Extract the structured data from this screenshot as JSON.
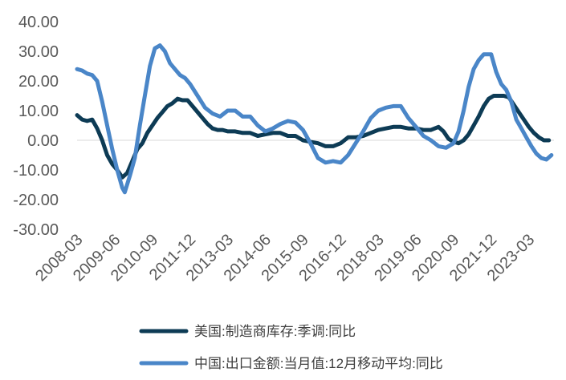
{
  "chart_data": {
    "type": "line",
    "title": "",
    "xlabel": "",
    "ylabel": "",
    "ylim": [
      -30,
      40
    ],
    "yticks": [
      "40.00",
      "30.00",
      "20.00",
      "10.00",
      "0.00",
      "-10.00",
      "-20.00",
      "-30.00"
    ],
    "ytick_values": [
      40,
      30,
      20,
      10,
      0,
      -10,
      -20,
      -30
    ],
    "xticks": [
      "2008-03",
      "2009-06",
      "2010-09",
      "2011-12",
      "2013-03",
      "2014-06",
      "2015-09",
      "2016-12",
      "2018-03",
      "2019-06",
      "2020-09",
      "2021-12",
      "2023-03"
    ],
    "x_start": "2008-03",
    "x_end": "2024-01",
    "grid": false,
    "legend_position": "bottom",
    "series": [
      {
        "name": "美国:制造商库存:季调:同比",
        "color": "#0d3b55",
        "points": [
          [
            "2008-03",
            8.5
          ],
          [
            "2008-05",
            7.0
          ],
          [
            "2008-07",
            6.5
          ],
          [
            "2008-09",
            7.0
          ],
          [
            "2008-11",
            4.0
          ],
          [
            "2009-01",
            0.0
          ],
          [
            "2009-03",
            -5.0
          ],
          [
            "2009-05",
            -8.0
          ],
          [
            "2009-07",
            -10.0
          ],
          [
            "2009-09",
            -12.5
          ],
          [
            "2009-11",
            -11.0
          ],
          [
            "2010-01",
            -7.0
          ],
          [
            "2010-03",
            -3.0
          ],
          [
            "2010-05",
            -1.0
          ],
          [
            "2010-07",
            2.5
          ],
          [
            "2010-09",
            5.0
          ],
          [
            "2010-11",
            7.5
          ],
          [
            "2011-01",
            9.5
          ],
          [
            "2011-03",
            11.5
          ],
          [
            "2011-05",
            12.5
          ],
          [
            "2011-07",
            14.0
          ],
          [
            "2011-09",
            13.5
          ],
          [
            "2011-11",
            13.5
          ],
          [
            "2012-01",
            11.5
          ],
          [
            "2012-03",
            9.5
          ],
          [
            "2012-05",
            7.5
          ],
          [
            "2012-07",
            5.5
          ],
          [
            "2012-09",
            4.0
          ],
          [
            "2012-11",
            3.5
          ],
          [
            "2013-01",
            3.5
          ],
          [
            "2013-03",
            3.0
          ],
          [
            "2013-06",
            3.0
          ],
          [
            "2013-09",
            2.5
          ],
          [
            "2013-12",
            2.5
          ],
          [
            "2014-03",
            1.5
          ],
          [
            "2014-06",
            2.0
          ],
          [
            "2014-09",
            2.5
          ],
          [
            "2014-12",
            2.5
          ],
          [
            "2015-03",
            1.5
          ],
          [
            "2015-06",
            1.5
          ],
          [
            "2015-09",
            0.0
          ],
          [
            "2015-12",
            -0.5
          ],
          [
            "2016-03",
            -1.0
          ],
          [
            "2016-06",
            -2.0
          ],
          [
            "2016-09",
            -2.0
          ],
          [
            "2016-12",
            -1.0
          ],
          [
            "2017-03",
            1.0
          ],
          [
            "2017-06",
            1.0
          ],
          [
            "2017-09",
            1.5
          ],
          [
            "2017-12",
            2.5
          ],
          [
            "2018-03",
            3.5
          ],
          [
            "2018-06",
            4.0
          ],
          [
            "2018-09",
            4.5
          ],
          [
            "2018-12",
            4.5
          ],
          [
            "2019-03",
            4.0
          ],
          [
            "2019-06",
            4.0
          ],
          [
            "2019-09",
            3.5
          ],
          [
            "2019-12",
            3.5
          ],
          [
            "2020-03",
            4.5
          ],
          [
            "2020-05",
            3.0
          ],
          [
            "2020-07",
            0.5
          ],
          [
            "2020-09",
            -0.5
          ],
          [
            "2020-11",
            -1.0
          ],
          [
            "2021-01",
            0.0
          ],
          [
            "2021-03",
            2.0
          ],
          [
            "2021-05",
            5.0
          ],
          [
            "2021-07",
            8.0
          ],
          [
            "2021-09",
            11.5
          ],
          [
            "2021-11",
            14.0
          ],
          [
            "2022-01",
            15.0
          ],
          [
            "2022-03",
            15.0
          ],
          [
            "2022-05",
            15.0
          ],
          [
            "2022-07",
            14.5
          ],
          [
            "2022-09",
            12.0
          ],
          [
            "2022-11",
            9.5
          ],
          [
            "2023-01",
            7.0
          ],
          [
            "2023-03",
            4.5
          ],
          [
            "2023-05",
            2.5
          ],
          [
            "2023-07",
            1.0
          ],
          [
            "2023-09",
            0.0
          ],
          [
            "2023-11",
            0.0
          ]
        ]
      },
      {
        "name": "中国:出口金额:当月值:12月移动平均:同比",
        "color": "#4a86c8",
        "points": [
          [
            "2008-03",
            24.0
          ],
          [
            "2008-05",
            23.5
          ],
          [
            "2008-07",
            22.5
          ],
          [
            "2008-09",
            22.0
          ],
          [
            "2008-11",
            20.0
          ],
          [
            "2009-01",
            13.0
          ],
          [
            "2009-03",
            5.0
          ],
          [
            "2009-05",
            -3.0
          ],
          [
            "2009-07",
            -10.0
          ],
          [
            "2009-09",
            -16.0
          ],
          [
            "2009-10",
            -17.5
          ],
          [
            "2009-12",
            -12.0
          ],
          [
            "2010-02",
            -6.0
          ],
          [
            "2010-04",
            5.0
          ],
          [
            "2010-06",
            15.0
          ],
          [
            "2010-08",
            25.0
          ],
          [
            "2010-10",
            31.0
          ],
          [
            "2010-12",
            32.0
          ],
          [
            "2011-02",
            30.0
          ],
          [
            "2011-04",
            26.0
          ],
          [
            "2011-06",
            24.0
          ],
          [
            "2011-08",
            22.0
          ],
          [
            "2011-10",
            21.0
          ],
          [
            "2011-12",
            19.0
          ],
          [
            "2012-03",
            15.0
          ],
          [
            "2012-06",
            11.0
          ],
          [
            "2012-09",
            9.0
          ],
          [
            "2012-12",
            8.0
          ],
          [
            "2013-03",
            10.0
          ],
          [
            "2013-06",
            10.0
          ],
          [
            "2013-09",
            8.0
          ],
          [
            "2013-12",
            8.0
          ],
          [
            "2014-03",
            5.0
          ],
          [
            "2014-06",
            3.0
          ],
          [
            "2014-09",
            4.0
          ],
          [
            "2014-12",
            5.5
          ],
          [
            "2015-03",
            6.5
          ],
          [
            "2015-06",
            6.0
          ],
          [
            "2015-09",
            3.5
          ],
          [
            "2015-12",
            -1.0
          ],
          [
            "2016-03",
            -6.0
          ],
          [
            "2016-06",
            -7.5
          ],
          [
            "2016-09",
            -7.0
          ],
          [
            "2016-12",
            -7.5
          ],
          [
            "2017-03",
            -5.0
          ],
          [
            "2017-06",
            -1.0
          ],
          [
            "2017-09",
            3.0
          ],
          [
            "2017-12",
            7.5
          ],
          [
            "2018-03",
            10.0
          ],
          [
            "2018-06",
            11.0
          ],
          [
            "2018-09",
            11.5
          ],
          [
            "2018-12",
            11.5
          ],
          [
            "2019-03",
            7.5
          ],
          [
            "2019-06",
            4.5
          ],
          [
            "2019-09",
            1.5
          ],
          [
            "2019-12",
            0.0
          ],
          [
            "2020-03",
            -2.0
          ],
          [
            "2020-06",
            -2.5
          ],
          [
            "2020-09",
            -1.0
          ],
          [
            "2020-11",
            3.0
          ],
          [
            "2021-01",
            10.0
          ],
          [
            "2021-03",
            18.0
          ],
          [
            "2021-05",
            24.0
          ],
          [
            "2021-07",
            27.0
          ],
          [
            "2021-09",
            29.0
          ],
          [
            "2021-11",
            29.0
          ],
          [
            "2021-12",
            29.0
          ],
          [
            "2022-02",
            23.0
          ],
          [
            "2022-04",
            19.0
          ],
          [
            "2022-06",
            17.0
          ],
          [
            "2022-08",
            13.0
          ],
          [
            "2022-10",
            7.0
          ],
          [
            "2022-12",
            4.0
          ],
          [
            "2023-02",
            1.0
          ],
          [
            "2023-04",
            -2.0
          ],
          [
            "2023-06",
            -4.5
          ],
          [
            "2023-08",
            -6.0
          ],
          [
            "2023-10",
            -6.5
          ],
          [
            "2023-12",
            -5.0
          ]
        ]
      }
    ]
  }
}
